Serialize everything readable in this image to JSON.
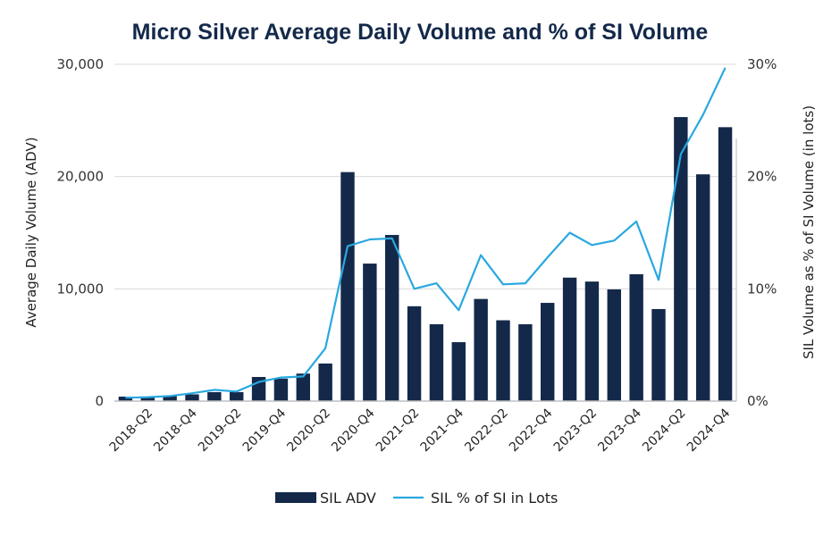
{
  "chart_data": {
    "type": "bar",
    "title": "Micro Silver Average Daily Volume and % of SI Volume",
    "xlabel": "",
    "ylabel": "Average Daily Volume (ADV)",
    "y2label": "SIL Volume as % of SI Volume (in lots)",
    "ylim": [
      0,
      30000
    ],
    "y2lim": [
      0,
      30
    ],
    "yticks": [
      "0",
      "10,000",
      "20,000",
      "30,000"
    ],
    "y2ticks": [
      "0%",
      "10%",
      "20%",
      "30%"
    ],
    "grid": true,
    "legend_position": "bottom",
    "categories": [
      "2018-Q1",
      "2018-Q2",
      "2018-Q3",
      "2018-Q4",
      "2019-Q1",
      "2019-Q2",
      "2019-Q3",
      "2019-Q4",
      "2020-Q1",
      "2020-Q2",
      "2020-Q3",
      "2020-Q4",
      "2021-Q1",
      "2021-Q2",
      "2021-Q3",
      "2021-Q4",
      "2022-Q1",
      "2022-Q2",
      "2022-Q3",
      "2022-Q4",
      "2023-Q1",
      "2023-Q2",
      "2023-Q3",
      "2023-Q4",
      "2024-Q1",
      "2024-Q2",
      "2024-Q3",
      "2024-Q4"
    ],
    "xtick_labels": [
      "2018-Q2",
      "2018-Q4",
      "2019-Q2",
      "2019-Q4",
      "2020-Q2",
      "2020-Q4",
      "2021-Q2",
      "2021-Q4",
      "2022-Q2",
      "2022-Q4",
      "2023-Q2",
      "2023-Q4",
      "2024-Q2",
      "2024-Q4"
    ],
    "series": [
      {
        "name": "SIL ADV",
        "type": "bar",
        "axis": "left",
        "color": "#14294a",
        "values": [
          400,
          400,
          450,
          600,
          800,
          800,
          2150,
          2000,
          2450,
          3350,
          20400,
          12250,
          14800,
          8450,
          6850,
          5250,
          9100,
          7200,
          6850,
          8750,
          11000,
          10650,
          9950,
          11300,
          8200,
          25300,
          20200,
          24400
        ]
      },
      {
        "name": "SIL % of SI in Lots",
        "type": "line",
        "axis": "right",
        "color": "#29a8e0",
        "values": [
          0.3,
          0.35,
          0.45,
          0.7,
          1.0,
          0.85,
          1.7,
          2.1,
          2.2,
          4.7,
          13.8,
          14.4,
          14.5,
          10.0,
          10.5,
          8.1,
          13.0,
          10.4,
          10.5,
          12.8,
          15.0,
          13.9,
          14.3,
          16.0,
          10.8,
          22.0,
          25.5,
          29.7
        ]
      }
    ]
  }
}
